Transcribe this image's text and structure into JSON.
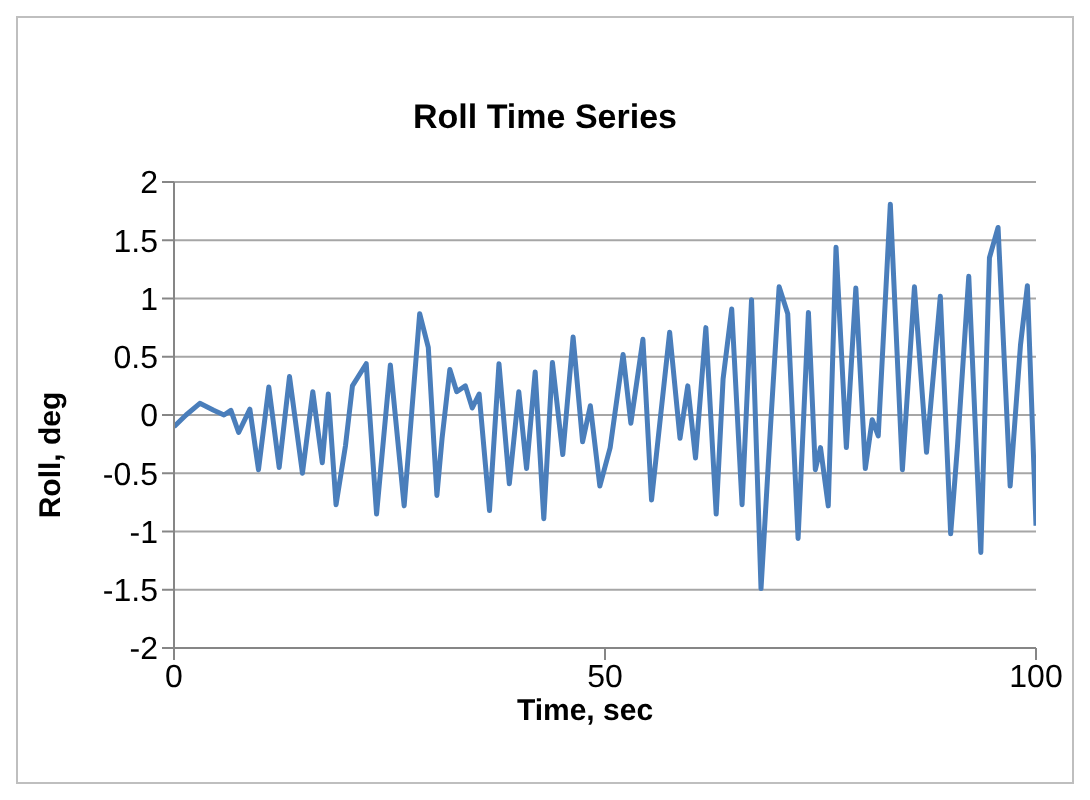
{
  "chart_data": {
    "type": "line",
    "title": "Roll Time Series",
    "xlabel": "Time, sec",
    "ylabel": "Roll, deg",
    "xlim": [
      0,
      100
    ],
    "xticks": [
      0,
      50,
      100
    ],
    "ylim": [
      -2,
      2
    ],
    "yticks": [
      -2,
      -1.5,
      -1,
      -0.5,
      0,
      0.5,
      1,
      1.5,
      2
    ],
    "grid": "y",
    "legend": false,
    "marker": "none",
    "line_style": "solid",
    "series": [
      {
        "color": "#4a7ebb",
        "x": [
          0,
          1.4,
          3.0,
          4.6,
          5.8,
          6.6,
          7.5,
          8.8,
          9.8,
          11.0,
          12.2,
          13.4,
          14.9,
          16.1,
          17.2,
          17.9,
          18.8,
          19.9,
          20.7,
          22.3,
          23.5,
          25.1,
          26.7,
          28.5,
          29.5,
          30.5,
          31.1,
          32.0,
          32.8,
          33.8,
          34.6,
          35.4,
          36.6,
          37.7,
          38.9,
          40.0,
          40.9,
          41.9,
          42.9,
          43.9,
          45.1,
          46.3,
          47.4,
          48.3,
          49.4,
          50.6,
          52.1,
          53.0,
          54.4,
          55.4,
          56.4,
          57.5,
          58.7,
          59.6,
          60.5,
          61.7,
          62.9,
          63.7,
          64.7,
          65.9,
          67.0,
          68.1,
          69.2,
          70.2,
          71.2,
          72.4,
          73.6,
          74.4,
          75.0,
          75.9,
          76.8,
          78.0,
          79.1,
          80.2,
          81.0,
          81.7,
          83.1,
          84.5,
          85.9,
          87.3,
          88.9,
          90.1,
          90.9,
          92.2,
          93.6,
          94.6,
          95.6,
          97.0,
          98.2,
          99.0,
          100.0
        ],
        "values": [
          -0.1,
          0,
          0.1,
          0.04,
          0,
          0.04,
          -0.15,
          0.05,
          -0.47,
          0.24,
          -0.45,
          0.33,
          -0.5,
          0.2,
          -0.41,
          0.18,
          -0.77,
          -0.26,
          0.25,
          0.44,
          -0.85,
          0.43,
          -0.78,
          0.87,
          0.58,
          -0.69,
          -0.2,
          0.39,
          0.2,
          0.25,
          0.06,
          0.18,
          -0.82,
          0.44,
          -0.59,
          0.2,
          -0.46,
          0.37,
          -0.89,
          0.45,
          -0.34,
          0.67,
          -0.23,
          0.08,
          -0.61,
          -0.28,
          0.52,
          -0.07,
          0.65,
          -0.73,
          -0.04,
          0.71,
          -0.2,
          0.25,
          -0.37,
          0.75,
          -0.85,
          0.31,
          0.91,
          -0.77,
          0.99,
          -1.49,
          -0.1,
          1.1,
          0.87,
          -1.06,
          0.88,
          -0.47,
          -0.28,
          -0.78,
          1.44,
          -0.28,
          1.09,
          -0.46,
          -0.04,
          -0.18,
          1.81,
          -0.47,
          1.1,
          -0.32,
          1.02,
          -1.02,
          -0.26,
          1.19,
          -1.18,
          1.35,
          1.61,
          -0.61,
          0.6,
          1.11,
          -0.95
        ]
      }
    ]
  }
}
